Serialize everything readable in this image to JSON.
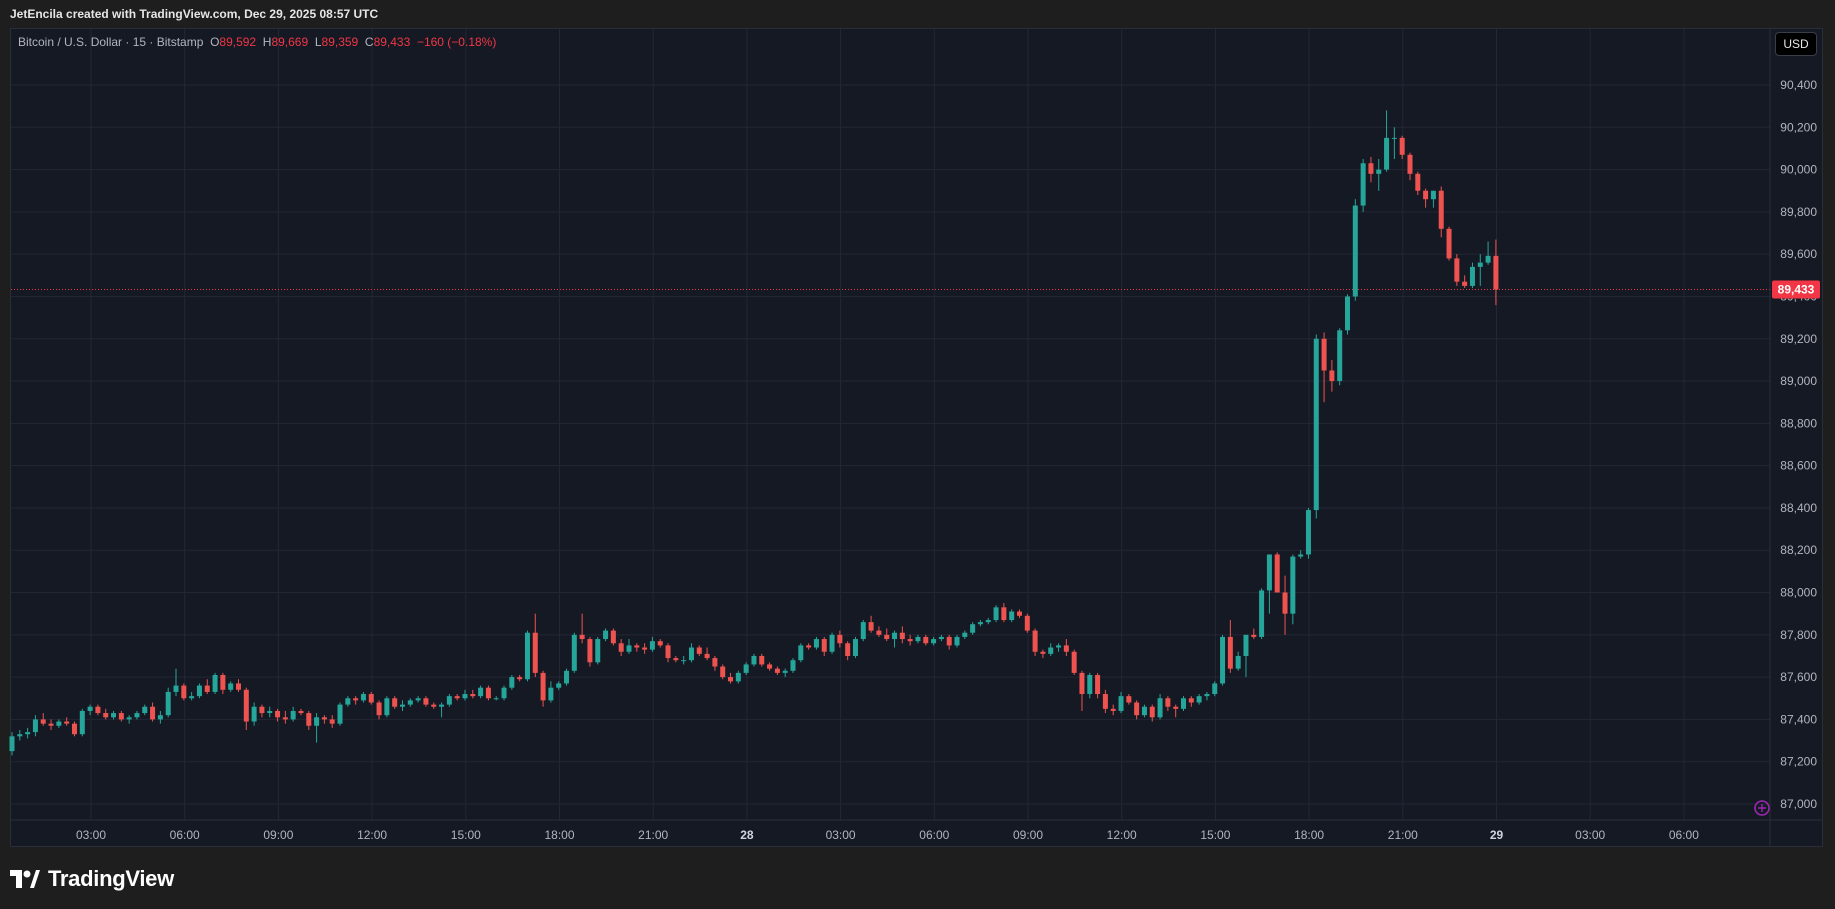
{
  "credit": "JetEncila created with TradingView.com, Dec 29, 2025 08:57 UTC",
  "legend": {
    "symbol": "Bitcoin / U.S. Dollar · 15 · Bitstamp",
    "o_label": "O",
    "o": "89,592",
    "h_label": "H",
    "h": "89,669",
    "l_label": "L",
    "l": "89,359",
    "c_label": "C",
    "c": "89,433",
    "change": "−160 (−0.18%)"
  },
  "currency_button": "USD",
  "last_price_label": "89,433",
  "brand": "TradingView",
  "colors": {
    "up": "#26a69a",
    "down": "#ef5350",
    "background": "#151924",
    "grid": "#232734",
    "price_line": "#f23645"
  },
  "chart_data": {
    "type": "candlestick",
    "interval_minutes": 15,
    "ylim": [
      86900,
      90550
    ],
    "y_ticks": [
      87000,
      87200,
      87400,
      87600,
      87800,
      88000,
      88200,
      88400,
      88600,
      88800,
      89000,
      89200,
      89400,
      89600,
      89800,
      90000,
      90200,
      90400
    ],
    "y_tick_labels": [
      "87,000",
      "87,200",
      "87,400",
      "87,600",
      "87,800",
      "88,000",
      "88,200",
      "88,400",
      "88,600",
      "88,800",
      "89,000",
      "89,200",
      "89,400",
      "89,600",
      "89,800",
      "90,000",
      "90,200",
      "90,400"
    ],
    "x_tick_labels": [
      "03:00",
      "06:00",
      "09:00",
      "12:00",
      "15:00",
      "18:00",
      "21:00",
      "28",
      "03:00",
      "06:00",
      "09:00",
      "12:00",
      "15:00",
      "18:00",
      "21:00",
      "29",
      "03:00",
      "06:00"
    ],
    "x_tick_bold": [
      false,
      false,
      false,
      false,
      false,
      false,
      false,
      true,
      false,
      false,
      false,
      false,
      false,
      false,
      false,
      true,
      false,
      false
    ],
    "last_price": 89433,
    "ohlc": [
      [
        87250,
        87340,
        87230,
        87320
      ],
      [
        87320,
        87350,
        87300,
        87330
      ],
      [
        87330,
        87360,
        87310,
        87340
      ],
      [
        87340,
        87420,
        87320,
        87400
      ],
      [
        87400,
        87430,
        87370,
        87380
      ],
      [
        87380,
        87400,
        87350,
        87370
      ],
      [
        87370,
        87400,
        87360,
        87390
      ],
      [
        87390,
        87410,
        87370,
        87380
      ],
      [
        87380,
        87390,
        87320,
        87330
      ],
      [
        87330,
        87450,
        87320,
        87440
      ],
      [
        87440,
        87470,
        87420,
        87460
      ],
      [
        87460,
        87470,
        87420,
        87430
      ],
      [
        87430,
        87450,
        87400,
        87410
      ],
      [
        87410,
        87440,
        87400,
        87430
      ],
      [
        87430,
        87440,
        87390,
        87400
      ],
      [
        87400,
        87420,
        87380,
        87410
      ],
      [
        87410,
        87440,
        87400,
        87430
      ],
      [
        87430,
        87470,
        87420,
        87460
      ],
      [
        87460,
        87480,
        87390,
        87400
      ],
      [
        87400,
        87440,
        87380,
        87420
      ],
      [
        87420,
        87550,
        87410,
        87530
      ],
      [
        87530,
        87640,
        87510,
        87560
      ],
      [
        87560,
        87570,
        87490,
        87500
      ],
      [
        87500,
        87530,
        87490,
        87510
      ],
      [
        87510,
        87570,
        87500,
        87560
      ],
      [
        87560,
        87590,
        87520,
        87530
      ],
      [
        87530,
        87620,
        87520,
        87610
      ],
      [
        87610,
        87620,
        87520,
        87540
      ],
      [
        87540,
        87580,
        87530,
        87570
      ],
      [
        87570,
        87590,
        87530,
        87540
      ],
      [
        87540,
        87550,
        87350,
        87390
      ],
      [
        87390,
        87480,
        87370,
        87460
      ],
      [
        87460,
        87470,
        87410,
        87430
      ],
      [
        87430,
        87460,
        87410,
        87440
      ],
      [
        87440,
        87450,
        87390,
        87410
      ],
      [
        87410,
        87440,
        87380,
        87400
      ],
      [
        87400,
        87460,
        87390,
        87440
      ],
      [
        87440,
        87450,
        87420,
        87430
      ],
      [
        87430,
        87440,
        87350,
        87370
      ],
      [
        87370,
        87430,
        87290,
        87410
      ],
      [
        87410,
        87420,
        87380,
        87400
      ],
      [
        87400,
        87420,
        87360,
        87380
      ],
      [
        87380,
        87480,
        87370,
        87470
      ],
      [
        87470,
        87510,
        87460,
        87500
      ],
      [
        87500,
        87510,
        87470,
        87490
      ],
      [
        87490,
        87530,
        87480,
        87520
      ],
      [
        87520,
        87530,
        87470,
        87480
      ],
      [
        87480,
        87490,
        87400,
        87420
      ],
      [
        87420,
        87510,
        87410,
        87500
      ],
      [
        87500,
        87510,
        87450,
        87460
      ],
      [
        87460,
        87490,
        87440,
        87470
      ],
      [
        87470,
        87500,
        87460,
        87490
      ],
      [
        87490,
        87510,
        87480,
        87500
      ],
      [
        87500,
        87510,
        87460,
        87470
      ],
      [
        87470,
        87480,
        87450,
        87460
      ],
      [
        87460,
        87480,
        87410,
        87470
      ],
      [
        87470,
        87520,
        87460,
        87510
      ],
      [
        87510,
        87520,
        87490,
        87500
      ],
      [
        87500,
        87540,
        87490,
        87520
      ],
      [
        87520,
        87540,
        87500,
        87510
      ],
      [
        87510,
        87560,
        87500,
        87550
      ],
      [
        87550,
        87560,
        87490,
        87500
      ],
      [
        87500,
        87510,
        87490,
        87500
      ],
      [
        87500,
        87560,
        87490,
        87550
      ],
      [
        87550,
        87610,
        87540,
        87600
      ],
      [
        87600,
        87610,
        87580,
        87590
      ],
      [
        87590,
        87820,
        87580,
        87810
      ],
      [
        87810,
        87900,
        87600,
        87620
      ],
      [
        87620,
        87630,
        87460,
        87490
      ],
      [
        87490,
        87580,
        87480,
        87550
      ],
      [
        87550,
        87580,
        87540,
        87570
      ],
      [
        87570,
        87640,
        87560,
        87630
      ],
      [
        87630,
        87810,
        87620,
        87800
      ],
      [
        87800,
        87900,
        87760,
        87780
      ],
      [
        87780,
        87790,
        87650,
        87670
      ],
      [
        87670,
        87790,
        87660,
        87780
      ],
      [
        87780,
        87830,
        87770,
        87820
      ],
      [
        87820,
        87830,
        87750,
        87760
      ],
      [
        87760,
        87780,
        87700,
        87720
      ],
      [
        87720,
        87780,
        87710,
        87750
      ],
      [
        87750,
        87760,
        87720,
        87740
      ],
      [
        87740,
        87760,
        87710,
        87730
      ],
      [
        87730,
        87790,
        87720,
        87770
      ],
      [
        87770,
        87780,
        87740,
        87750
      ],
      [
        87750,
        87760,
        87670,
        87690
      ],
      [
        87690,
        87700,
        87670,
        87680
      ],
      [
        87680,
        87700,
        87660,
        87680
      ],
      [
        87680,
        87760,
        87670,
        87740
      ],
      [
        87740,
        87750,
        87700,
        87710
      ],
      [
        87710,
        87740,
        87680,
        87690
      ],
      [
        87690,
        87700,
        87630,
        87650
      ],
      [
        87650,
        87660,
        87590,
        87600
      ],
      [
        87600,
        87620,
        87570,
        87580
      ],
      [
        87580,
        87630,
        87570,
        87620
      ],
      [
        87620,
        87670,
        87610,
        87660
      ],
      [
        87660,
        87710,
        87650,
        87700
      ],
      [
        87700,
        87710,
        87650,
        87660
      ],
      [
        87660,
        87670,
        87630,
        87640
      ],
      [
        87640,
        87650,
        87610,
        87620
      ],
      [
        87620,
        87640,
        87600,
        87630
      ],
      [
        87630,
        87690,
        87620,
        87680
      ],
      [
        87680,
        87760,
        87670,
        87750
      ],
      [
        87750,
        87760,
        87730,
        87740
      ],
      [
        87740,
        87790,
        87730,
        87780
      ],
      [
        87780,
        87790,
        87700,
        87720
      ],
      [
        87720,
        87810,
        87710,
        87800
      ],
      [
        87800,
        87820,
        87740,
        87760
      ],
      [
        87760,
        87770,
        87680,
        87700
      ],
      [
        87700,
        87790,
        87690,
        87780
      ],
      [
        87780,
        87870,
        87770,
        87860
      ],
      [
        87860,
        87890,
        87810,
        87820
      ],
      [
        87820,
        87840,
        87790,
        87800
      ],
      [
        87800,
        87830,
        87770,
        87780
      ],
      [
        87780,
        87820,
        87740,
        87810
      ],
      [
        87810,
        87840,
        87760,
        87780
      ],
      [
        87780,
        87800,
        87750,
        87770
      ],
      [
        87770,
        87800,
        87760,
        87790
      ],
      [
        87790,
        87800,
        87750,
        87760
      ],
      [
        87760,
        87790,
        87750,
        87780
      ],
      [
        87780,
        87800,
        87770,
        87790
      ],
      [
        87790,
        87800,
        87730,
        87750
      ],
      [
        87750,
        87800,
        87740,
        87790
      ],
      [
        87790,
        87820,
        87780,
        87810
      ],
      [
        87810,
        87860,
        87800,
        87850
      ],
      [
        87850,
        87870,
        87840,
        87860
      ],
      [
        87860,
        87880,
        87850,
        87870
      ],
      [
        87870,
        87940,
        87860,
        87930
      ],
      [
        87930,
        87950,
        87860,
        87870
      ],
      [
        87870,
        87920,
        87860,
        87910
      ],
      [
        87910,
        87920,
        87880,
        87890
      ],
      [
        87890,
        87900,
        87810,
        87820
      ],
      [
        87820,
        87830,
        87700,
        87720
      ],
      [
        87720,
        87730,
        87690,
        87710
      ],
      [
        87710,
        87760,
        87700,
        87740
      ],
      [
        87740,
        87760,
        87720,
        87750
      ],
      [
        87750,
        87780,
        87700,
        87720
      ],
      [
        87720,
        87730,
        87610,
        87620
      ],
      [
        87620,
        87630,
        87440,
        87520
      ],
      [
        87520,
        87620,
        87500,
        87610
      ],
      [
        87610,
        87620,
        87500,
        87520
      ],
      [
        87520,
        87540,
        87430,
        87450
      ],
      [
        87450,
        87470,
        87420,
        87440
      ],
      [
        87440,
        87530,
        87430,
        87510
      ],
      [
        87510,
        87520,
        87470,
        87480
      ],
      [
        87480,
        87490,
        87400,
        87420
      ],
      [
        87420,
        87470,
        87410,
        87460
      ],
      [
        87460,
        87470,
        87390,
        87410
      ],
      [
        87410,
        87520,
        87400,
        87500
      ],
      [
        87500,
        87510,
        87440,
        87460
      ],
      [
        87460,
        87470,
        87410,
        87450
      ],
      [
        87450,
        87510,
        87440,
        87500
      ],
      [
        87500,
        87510,
        87460,
        87480
      ],
      [
        87480,
        87520,
        87470,
        87510
      ],
      [
        87510,
        87530,
        87490,
        87520
      ],
      [
        87520,
        87580,
        87510,
        87570
      ],
      [
        87570,
        87800,
        87560,
        87790
      ],
      [
        87790,
        87870,
        87620,
        87640
      ],
      [
        87640,
        87720,
        87630,
        87700
      ],
      [
        87700,
        87800,
        87600,
        87800
      ],
      [
        87800,
        87830,
        87780,
        87790
      ],
      [
        87790,
        88020,
        87780,
        88010
      ],
      [
        88010,
        88180,
        87900,
        88180
      ],
      [
        88180,
        88190,
        88000,
        88000
      ],
      [
        88000,
        88080,
        87800,
        87900
      ],
      [
        87900,
        88180,
        87850,
        88170
      ],
      [
        88170,
        88200,
        88160,
        88180
      ],
      [
        88180,
        88400,
        88160,
        88390
      ],
      [
        88390,
        89220,
        88350,
        89200
      ],
      [
        89200,
        89230,
        88900,
        89050
      ],
      [
        89050,
        89100,
        88950,
        89000
      ],
      [
        89000,
        89250,
        88980,
        89240
      ],
      [
        89240,
        89410,
        89220,
        89400
      ],
      [
        89400,
        89860,
        89380,
        89830
      ],
      [
        89830,
        90050,
        89800,
        90030
      ],
      [
        90030,
        90060,
        89940,
        89980
      ],
      [
        89980,
        90050,
        89900,
        90000
      ],
      [
        90000,
        90280,
        89990,
        90150
      ],
      [
        90150,
        90200,
        90050,
        90150
      ],
      [
        90150,
        90160,
        90050,
        90070
      ],
      [
        90070,
        90080,
        89950,
        89980
      ],
      [
        89980,
        89990,
        89880,
        89900
      ],
      [
        89900,
        89910,
        89820,
        89860
      ],
      [
        89860,
        89900,
        89820,
        89900
      ],
      [
        89900,
        89920,
        89680,
        89720
      ],
      [
        89720,
        89730,
        89570,
        89580
      ],
      [
        89580,
        89600,
        89450,
        89470
      ],
      [
        89470,
        89500,
        89440,
        89450
      ],
      [
        89450,
        89560,
        89440,
        89540
      ],
      [
        89540,
        89600,
        89450,
        89560
      ],
      [
        89560,
        89660,
        89550,
        89592
      ],
      [
        89592,
        89669,
        89359,
        89433
      ]
    ]
  }
}
